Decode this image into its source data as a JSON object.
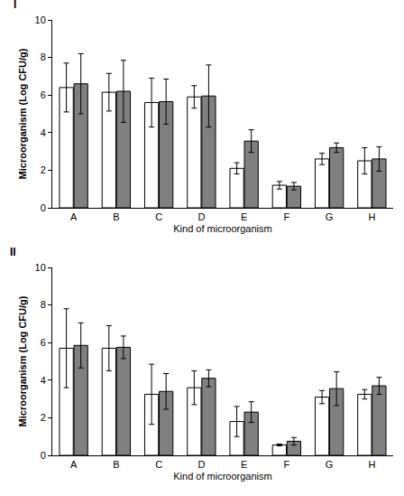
{
  "chart_data": [
    {
      "type": "bar",
      "title": "I",
      "x_label": "Kind of microorganism",
      "y_label": "Microorganism (Log CFU/g)",
      "categories": [
        "A",
        "B",
        "C",
        "D",
        "E",
        "F",
        "G",
        "H"
      ],
      "series": [
        {
          "color": "#ffffff",
          "values": [
            6.4,
            6.15,
            5.6,
            5.9,
            2.1,
            1.2,
            2.6,
            2.5
          ],
          "errors": [
            1.3,
            1.0,
            1.3,
            0.6,
            0.3,
            0.2,
            0.3,
            0.7
          ]
        },
        {
          "color": "#808080",
          "values": [
            6.6,
            6.2,
            5.65,
            5.95,
            3.55,
            1.15,
            3.2,
            2.6
          ],
          "errors": [
            1.6,
            1.65,
            1.2,
            1.65,
            0.6,
            0.2,
            0.25,
            0.65
          ]
        }
      ],
      "ylim": [
        0,
        10
      ],
      "yticks": [
        0,
        2,
        4,
        6,
        8,
        10
      ],
      "grid": false
    },
    {
      "type": "bar",
      "title": "II",
      "x_label": "Kind of microorganism",
      "y_label": "Microorganism (Log CFU/g)",
      "categories": [
        "A",
        "B",
        "C",
        "D",
        "E",
        "F",
        "G",
        "H"
      ],
      "series": [
        {
          "color": "#ffffff",
          "values": [
            5.7,
            5.7,
            3.25,
            3.6,
            1.8,
            0.55,
            3.1,
            3.25
          ],
          "errors": [
            2.1,
            1.2,
            1.6,
            0.9,
            0.8,
            0.05,
            0.35,
            0.25
          ]
        },
        {
          "color": "#808080",
          "values": [
            5.85,
            5.75,
            3.4,
            4.1,
            2.3,
            0.75,
            3.55,
            3.7
          ],
          "errors": [
            1.2,
            0.6,
            0.95,
            0.45,
            0.55,
            0.2,
            0.9,
            0.45
          ]
        }
      ],
      "ylim": [
        0,
        10
      ],
      "yticks": [
        0,
        2,
        4,
        6,
        8,
        10
      ],
      "grid": false
    }
  ]
}
